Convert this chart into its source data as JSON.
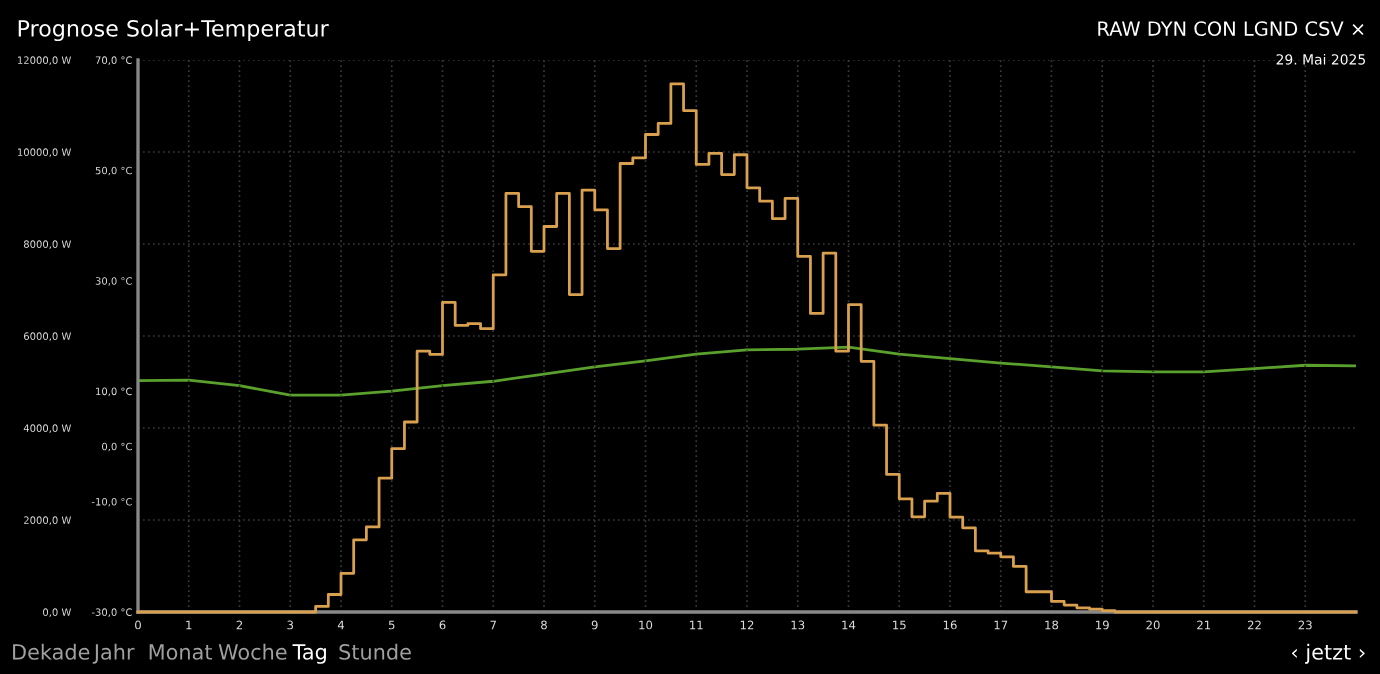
{
  "chart_data": {
    "type": "step",
    "title": "Prognose Solar+Temperatur",
    "annotations": [
      "RAW DYN CON LGND CSV ×",
      "29. Mai 2025",
      "Dekade",
      "Jahr",
      "Monat",
      "Woche",
      "Tag",
      "Stunde",
      "‹ jetzt ›"
    ],
    "xlim": [
      0,
      24
    ],
    "xticks": [
      0,
      1,
      2,
      3,
      4,
      5,
      6,
      7,
      8,
      9,
      10,
      11,
      12,
      13,
      14,
      15,
      16,
      17,
      18,
      19,
      20,
      21,
      22,
      23
    ],
    "ylim": [
      0,
      12000
    ],
    "yticks": [
      {
        "value": 0,
        "label": "0,0 W"
      },
      {
        "value": 2000,
        "label": "2000,0 W"
      },
      {
        "value": 4000,
        "label": "4000,0 W"
      },
      {
        "value": 6000,
        "label": "6000,0 W"
      },
      {
        "value": 8000,
        "label": "8000,0 W"
      },
      {
        "value": 10000,
        "label": "10000,0 W"
      },
      {
        "value": 12000,
        "label": "12000,0 W"
      }
    ],
    "y2lim": [
      -30,
      70
    ],
    "y2ticks": [
      {
        "value": -30,
        "label": "-30,0 °C"
      },
      {
        "value": -10,
        "label": "-10,0 °C"
      },
      {
        "value": 0,
        "label": "0,0 °C"
      },
      {
        "value": 10,
        "label": "10,0 °C"
      },
      {
        "value": 30,
        "label": "30,0 °C"
      },
      {
        "value": 50,
        "label": "50,0 °C"
      },
      {
        "value": 70,
        "label": "70,0 °C"
      }
    ],
    "grid": true,
    "series": [
      {
        "color": "#d9a050",
        "x": [
          0,
          0.25,
          0.5,
          0.75,
          1,
          1.25,
          1.5,
          1.75,
          2,
          2.25,
          2.5,
          2.75,
          3,
          3.25,
          3.5,
          3.75,
          4,
          4.25,
          4.5,
          4.75,
          5,
          5.25,
          5.5,
          5.75,
          6,
          6.25,
          6.5,
          6.75,
          7,
          7.25,
          7.5,
          7.75,
          8,
          8.25,
          8.5,
          8.75,
          9,
          9.25,
          9.5,
          9.75,
          10,
          10.25,
          10.5,
          10.75,
          11,
          11.25,
          11.5,
          11.75,
          12,
          12.25,
          12.5,
          12.75,
          13,
          13.25,
          13.5,
          13.75,
          14,
          14.25,
          14.5,
          14.75,
          15,
          15.25,
          15.5,
          15.75,
          16,
          16.25,
          16.5,
          16.75,
          17,
          17.25,
          17.5,
          17.75,
          18,
          18.25,
          18.5,
          18.75,
          19,
          19.25,
          19.5,
          19.75,
          20,
          20.25,
          20.5,
          20.75,
          21,
          21.25,
          21.5,
          21.75,
          22,
          22.25,
          22.5,
          22.75,
          23,
          23.25,
          23.5,
          23.75,
          24
        ],
        "values": [
          0,
          0,
          0,
          0,
          0,
          0,
          0,
          0,
          0,
          0,
          0,
          0,
          0,
          0,
          120,
          380,
          840,
          1570,
          1850,
          2910,
          3550,
          4130,
          5670,
          5600,
          6730,
          6230,
          6270,
          6160,
          7330,
          9100,
          8810,
          7840,
          8380,
          9100,
          6900,
          9170,
          8740,
          7900,
          9750,
          9870,
          10380,
          10620,
          11480,
          10900,
          9730,
          9970,
          9510,
          9940,
          9220,
          8930,
          8550,
          8990,
          7730,
          6490,
          7800,
          5670,
          6680,
          5450,
          4060,
          2990,
          2460,
          2070,
          2410,
          2580,
          2060,
          1830,
          1330,
          1280,
          1200,
          990,
          440,
          440,
          230,
          150,
          90,
          60,
          30,
          0,
          0,
          0,
          0,
          0,
          0,
          0,
          0,
          0,
          0,
          0,
          0,
          0,
          0,
          0,
          0,
          0,
          0,
          0,
          0
        ]
      },
      {
        "type": "line",
        "axis": "y2",
        "color": "#5aa02c",
        "x": [
          0,
          1,
          2,
          3,
          4,
          5,
          6,
          7,
          8,
          9,
          10,
          11,
          12,
          13,
          14,
          15,
          16,
          17,
          18,
          19,
          20,
          21,
          22,
          23,
          24
        ],
        "values": [
          11.9,
          12,
          11,
          9.3,
          9.3,
          10,
          11,
          11.8,
          13.1,
          14.4,
          15.5,
          16.7,
          17.5,
          17.6,
          18,
          16.7,
          15.9,
          15.1,
          14.4,
          13.7,
          13.5,
          13.5,
          14.1,
          14.7,
          14.6
        ]
      }
    ]
  }
}
